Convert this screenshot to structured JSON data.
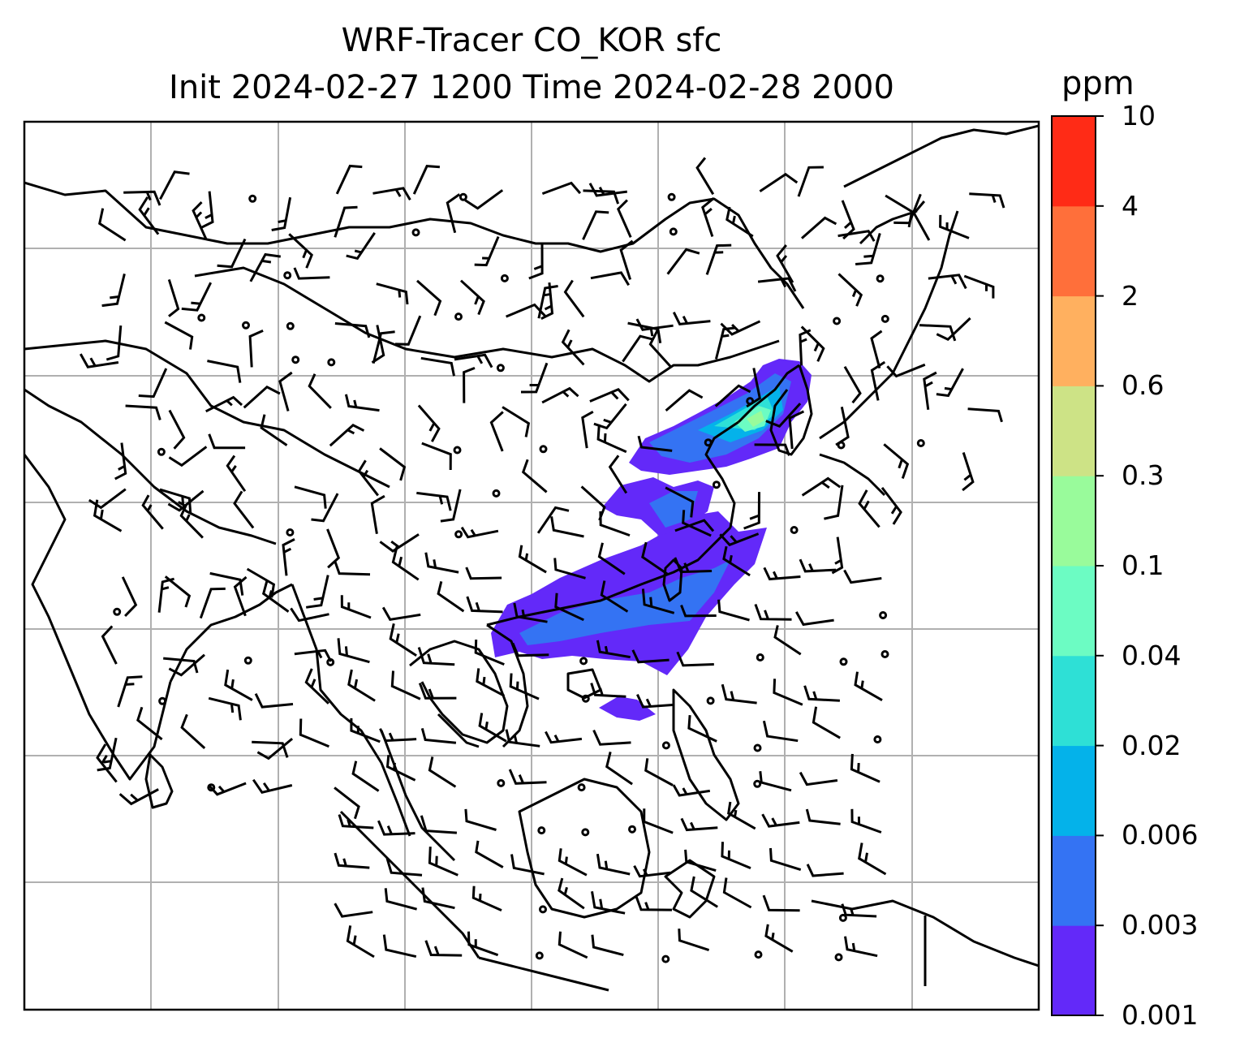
{
  "title": {
    "line1": "WRF-Tracer CO_KOR sfc",
    "line2": "Init 2024-02-27 1200 Time 2024-02-28 2000"
  },
  "colorbar": {
    "unit": "ppm",
    "levels": [
      "0.001",
      "0.003",
      "0.006",
      "0.02",
      "0.04",
      "0.1",
      "0.3",
      "0.6",
      "2",
      "4",
      "10"
    ],
    "colors": [
      "#6329f9",
      "#3473f3",
      "#04b2ea",
      "#2ee0d6",
      "#6cfcc3",
      "#99fb9b",
      "#cde386",
      "#ffb05f",
      "#ff6f3a",
      "#ff2b16"
    ]
  },
  "map": {
    "style": {
      "gridline_color": "#b0b0b0",
      "coastline_color": "#000000",
      "barb_color": "#000000"
    },
    "map_features": [
      "coastlines",
      "gridlines",
      "wind-barbs",
      "tracer-contour-fill"
    ]
  }
}
